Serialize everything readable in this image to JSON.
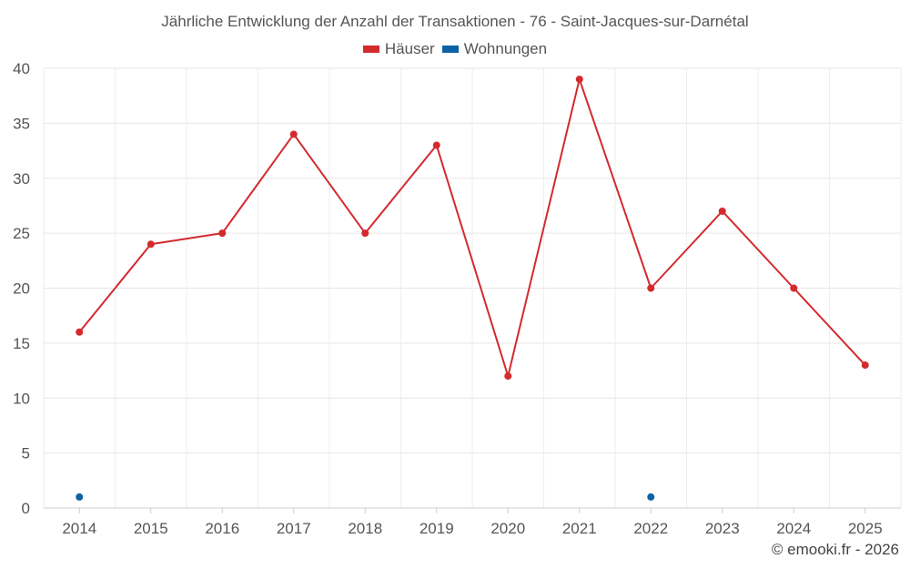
{
  "chart_data": {
    "type": "line",
    "title": "Jährliche Entwicklung der Anzahl der Transaktionen - 76 - Saint-Jacques-sur-Darnétal",
    "categories": [
      "2014",
      "2015",
      "2016",
      "2017",
      "2018",
      "2019",
      "2020",
      "2021",
      "2022",
      "2023",
      "2024",
      "2025"
    ],
    "series": [
      {
        "name": "Häuser",
        "color": "#d32a2e",
        "values": [
          16,
          24,
          25,
          34,
          25,
          33,
          12,
          39,
          20,
          27,
          20,
          13
        ]
      },
      {
        "name": "Wohnungen",
        "color": "#0b62a4",
        "values": [
          1,
          null,
          null,
          null,
          null,
          null,
          null,
          null,
          1,
          null,
          null,
          null
        ]
      }
    ],
    "xlabel": "",
    "ylabel": "",
    "ylim": [
      0,
      40
    ],
    "yticks": [
      0,
      5,
      10,
      15,
      20,
      25,
      30,
      35,
      40
    ],
    "grid": true,
    "legend_position": "top-center"
  },
  "credit": "© emooki.fr - 2026"
}
